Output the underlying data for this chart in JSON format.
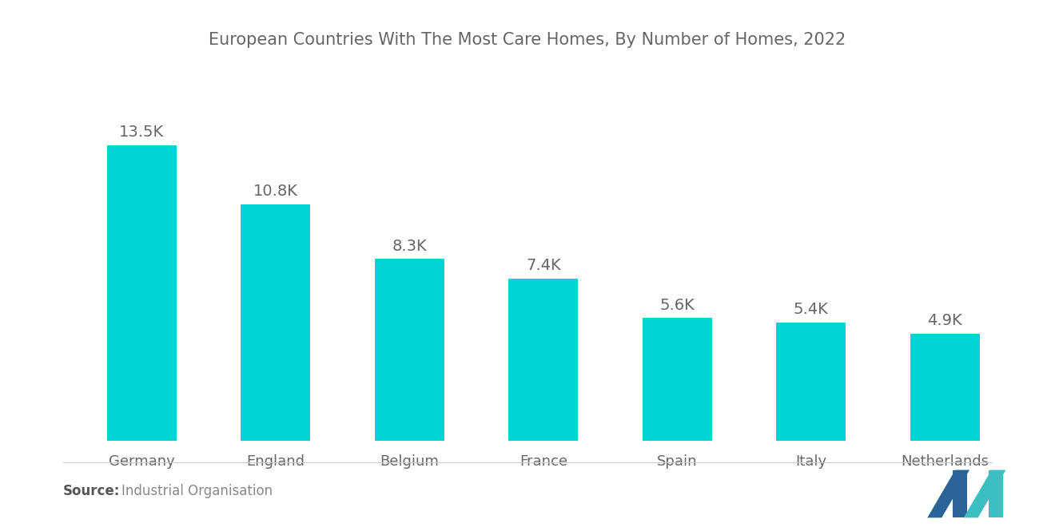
{
  "title": "European Countries With The Most Care Homes, By Number of Homes, 2022",
  "categories": [
    "Germany",
    "England",
    "Belgium",
    "France",
    "Spain",
    "Italy",
    "Netherlands"
  ],
  "values": [
    13500,
    10800,
    8300,
    7400,
    5600,
    5400,
    4900
  ],
  "labels": [
    "13.5K",
    "10.8K",
    "8.3K",
    "7.4K",
    "5.6K",
    "5.4K",
    "4.9K"
  ],
  "bar_color": "#00D4D4",
  "background_color": "#ffffff",
  "title_color": "#666666",
  "label_color": "#666666",
  "xtick_color": "#666666",
  "source_bold": "Source:",
  "source_normal": "  Industrial Organisation",
  "title_fontsize": 15,
  "label_fontsize": 14,
  "category_fontsize": 13,
  "source_fontsize": 12,
  "ylim": [
    0,
    16500
  ],
  "bar_width": 0.52
}
